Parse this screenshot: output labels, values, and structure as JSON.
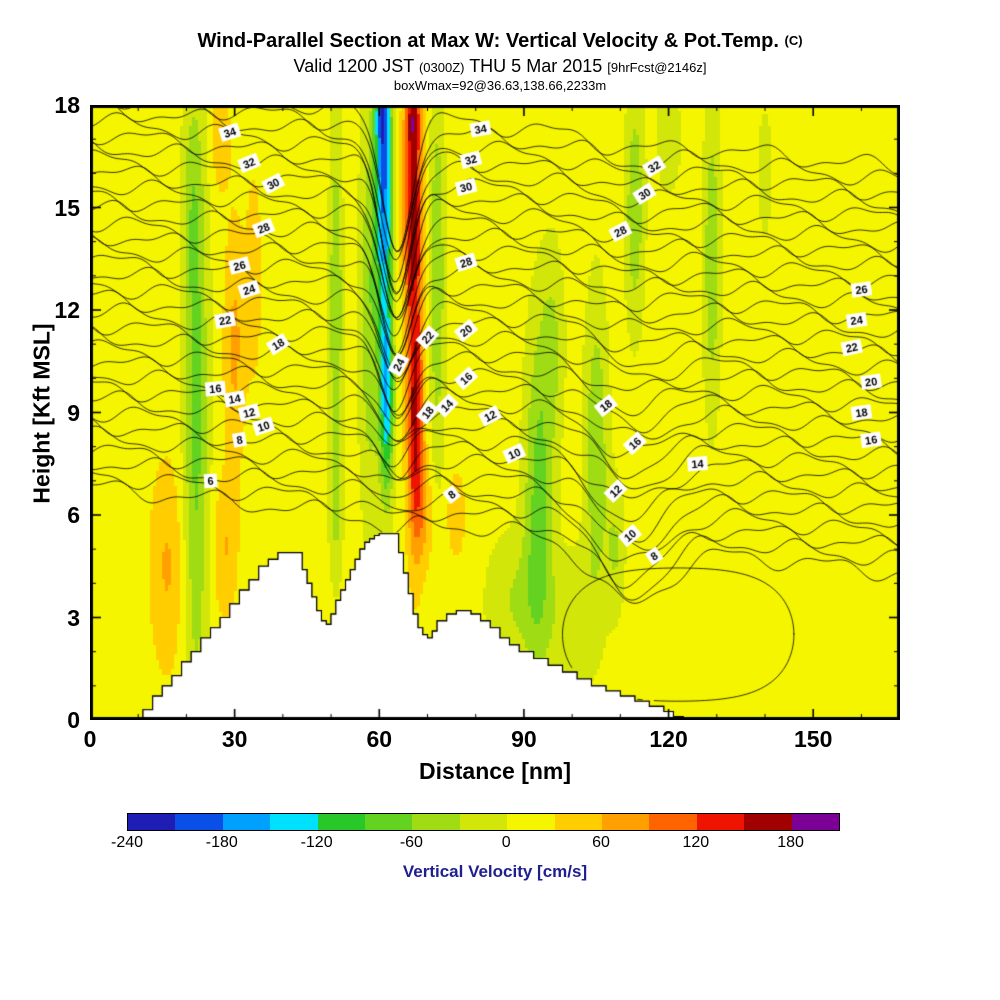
{
  "header": {
    "title": "Wind-Parallel Section at Max W: Vertical Velocity & Pot.Temp.",
    "title_suffix": "(C)",
    "valid_main1": "Valid 1200 JST",
    "valid_small1": "(0300Z)",
    "valid_main2": "THU 5 Mar 2015",
    "valid_small2": "[9hrFcst@2146z]",
    "box_info": "boxWmax=92@36.63,138.66,2233m"
  },
  "axes": {
    "xlabel": "Distance [nm]",
    "ylabel": "Height [Kft MSL]",
    "x_ticks": [
      0,
      30,
      60,
      90,
      120,
      150
    ],
    "x_minor_step": 10,
    "y_ticks": [
      0,
      3,
      6,
      9,
      12,
      15,
      18
    ],
    "y_minor_step": 1,
    "x_range": [
      0,
      168
    ],
    "y_range": [
      0,
      18
    ]
  },
  "colorbar": {
    "label": "Vertical Velocity [cm/s]",
    "label_color": "#1f1f8f",
    "vmin": -240,
    "vmax": 210,
    "step": 30,
    "ticks": [
      -240,
      -180,
      -120,
      -60,
      0,
      60,
      120,
      180
    ],
    "colors": [
      "#1e1eb4",
      "#0a50e6",
      "#00a0ff",
      "#00e1ff",
      "#28c828",
      "#64d220",
      "#a0dc14",
      "#d2e60a",
      "#f5f500",
      "#ffcd00",
      "#ffa000",
      "#ff6400",
      "#ef1400",
      "#a00000",
      "#7d0096"
    ]
  },
  "chart_data": {
    "type": "contour-cross-section",
    "title": "Wind-Parallel Section at Max W: Vertical Velocity & Pot.Temp. (C)",
    "xlabel": "Distance [nm]",
    "ylabel": "Height [Kft MSL]",
    "fill_quantity": "Vertical Velocity [cm/s]",
    "line_quantity": "Potential Temperature (C)",
    "background_value": 15,
    "velocity_blobs": [
      {
        "x": 22,
        "z": 9,
        "sx": 2.6,
        "sz": 9,
        "a": -85
      },
      {
        "x": 21,
        "z": 15,
        "sx": 2.0,
        "sz": 3,
        "a": -30
      },
      {
        "x": 16,
        "z": 4.5,
        "sx": 3.5,
        "sz": 3,
        "a": 48
      },
      {
        "x": 28,
        "z": 5,
        "sx": 2.5,
        "sz": 2,
        "a": 45
      },
      {
        "x": 30,
        "z": 11,
        "sx": 2.2,
        "sz": 3.5,
        "a": 52
      },
      {
        "x": 34,
        "z": 13,
        "sx": 1.6,
        "sz": 3,
        "a": 35
      },
      {
        "x": 27,
        "z": 17,
        "sx": 2,
        "sz": 1.5,
        "a": 40
      },
      {
        "x": 51,
        "z": 12,
        "sx": 1.4,
        "sz": 5.5,
        "a": -75
      },
      {
        "x": 51,
        "z": 6,
        "sx": 1.5,
        "sz": 2,
        "a": -35
      },
      {
        "x": 58,
        "z": 12,
        "sx": 2.2,
        "sz": 6,
        "a": -70
      },
      {
        "x": 61,
        "z": 15.5,
        "sx": 1.7,
        "sz": 3.5,
        "a": -190
      },
      {
        "x": 61.5,
        "z": 9.5,
        "sx": 1.5,
        "sz": 3,
        "a": -165
      },
      {
        "x": 60.5,
        "z": 17.8,
        "sx": 1.5,
        "sz": 1.2,
        "a": -110
      },
      {
        "x": 67,
        "z": 15,
        "sx": 1.9,
        "sz": 4,
        "a": 150
      },
      {
        "x": 67.5,
        "z": 8.5,
        "sx": 1.7,
        "sz": 3.5,
        "a": 140
      },
      {
        "x": 67,
        "z": 17.8,
        "sx": 1.5,
        "sz": 1.2,
        "a": 70
      },
      {
        "x": 69.5,
        "z": 6,
        "sx": 2,
        "sz": 1.5,
        "a": 40
      },
      {
        "x": 72,
        "z": 13,
        "sx": 1.6,
        "sz": 5.5,
        "a": -75
      },
      {
        "x": 76,
        "z": 6,
        "sx": 1.8,
        "sz": 1.2,
        "a": 42
      },
      {
        "x": 93,
        "z": 6.5,
        "sx": 3,
        "sz": 5,
        "a": -85
      },
      {
        "x": 96,
        "z": 11,
        "sx": 2.5,
        "sz": 3,
        "a": -45
      },
      {
        "x": 88,
        "z": 3.5,
        "sx": 6,
        "sz": 2,
        "a": -45
      },
      {
        "x": 100,
        "z": 3,
        "sx": 5,
        "sz": 2,
        "a": -40
      },
      {
        "x": 105,
        "z": 8,
        "sx": 2.5,
        "sz": 4.5,
        "a": -70
      },
      {
        "x": 109,
        "z": 5,
        "sx": 2,
        "sz": 2,
        "a": -45
      },
      {
        "x": 113,
        "z": 15,
        "sx": 2,
        "sz": 3.5,
        "a": -70
      },
      {
        "x": 120,
        "z": 17,
        "sx": 2.5,
        "sz": 1.5,
        "a": -45
      },
      {
        "x": 129,
        "z": 13.5,
        "sx": 1.8,
        "sz": 4.5,
        "a": -70
      },
      {
        "x": 140,
        "z": 16,
        "sx": 2,
        "sz": 2.5,
        "a": -25
      }
    ],
    "terrain_profile": [
      [
        9,
        0
      ],
      [
        11,
        0.3
      ],
      [
        13,
        0.7
      ],
      [
        15,
        1.0
      ],
      [
        17,
        1.3
      ],
      [
        19,
        1.7
      ],
      [
        21,
        2.0
      ],
      [
        23,
        2.4
      ],
      [
        25,
        2.7
      ],
      [
        27,
        3.0
      ],
      [
        29,
        3.4
      ],
      [
        31,
        3.8
      ],
      [
        33,
        4.1
      ],
      [
        35,
        4.5
      ],
      [
        37,
        4.7
      ],
      [
        39,
        4.9
      ],
      [
        43,
        4.9
      ],
      [
        44,
        4.4
      ],
      [
        45,
        4.0
      ],
      [
        46,
        3.6
      ],
      [
        47,
        3.2
      ],
      [
        48,
        2.9
      ],
      [
        49,
        2.8
      ],
      [
        50,
        3.1
      ],
      [
        51,
        3.5
      ],
      [
        52,
        3.8
      ],
      [
        53,
        4.1
      ],
      [
        54,
        4.4
      ],
      [
        55,
        4.7
      ],
      [
        56,
        5.0
      ],
      [
        57,
        5.2
      ],
      [
        58,
        5.3
      ],
      [
        59,
        5.4
      ],
      [
        60,
        5.45
      ],
      [
        63,
        5.45
      ],
      [
        64,
        4.9
      ],
      [
        65,
        4.3
      ],
      [
        66,
        3.7
      ],
      [
        67,
        3.1
      ],
      [
        68,
        2.7
      ],
      [
        69,
        2.5
      ],
      [
        70,
        2.4
      ],
      [
        71,
        2.6
      ],
      [
        72,
        2.9
      ],
      [
        74,
        3.1
      ],
      [
        76,
        3.2
      ],
      [
        79,
        3.1
      ],
      [
        81,
        2.9
      ],
      [
        83,
        2.7
      ],
      [
        85,
        2.4
      ],
      [
        87,
        2.2
      ],
      [
        89,
        2.0
      ],
      [
        92,
        1.8
      ],
      [
        95,
        1.6
      ],
      [
        98,
        1.4
      ],
      [
        101,
        1.2
      ],
      [
        104,
        1.0
      ],
      [
        107,
        0.85
      ],
      [
        110,
        0.7
      ],
      [
        113,
        0.55
      ],
      [
        116,
        0.4
      ],
      [
        119,
        0.25
      ],
      [
        121,
        0.1
      ],
      [
        123,
        0
      ]
    ],
    "isentropes": {
      "start": 4,
      "end": 36,
      "step": 1,
      "base": 5.55,
      "slope": 0.37,
      "tilt": -0.015,
      "tilt_x0": 85,
      "ripple1_amp": 0.22,
      "ripple1_wl": 3.4,
      "ripple1_ph": 1.7,
      "ripple2_amp": 0.1,
      "ripple2_wl": 1.6,
      "ripple2_ph": 0.9,
      "main_dip": {
        "x": 63.5,
        "sx": 4.3,
        "amp": 3.3,
        "vscale": 26,
        "vmin_frac": 0.12,
        "vmax_frac": 1.15
      },
      "secondary_dip": {
        "x": 112,
        "sx": 10,
        "amp": 1.8
      }
    },
    "closed_contour": {
      "cx": 122,
      "cz": 2.5,
      "rx": 24,
      "rz": 2.1
    },
    "contour_labels": [
      {
        "t": "34",
        "x": 29,
        "z": 17.2,
        "r": -18
      },
      {
        "t": "32",
        "x": 33,
        "z": 16.3,
        "r": -22
      },
      {
        "t": "30",
        "x": 38,
        "z": 15.7,
        "r": -28
      },
      {
        "t": "28",
        "x": 36,
        "z": 14.4,
        "r": -22
      },
      {
        "t": "26",
        "x": 31,
        "z": 13.3,
        "r": -14
      },
      {
        "t": "24",
        "x": 33,
        "z": 12.6,
        "r": -18
      },
      {
        "t": "22",
        "x": 28,
        "z": 11.7,
        "r": -10
      },
      {
        "t": "18",
        "x": 39,
        "z": 11.0,
        "r": -32
      },
      {
        "t": "16",
        "x": 26,
        "z": 9.7,
        "r": -5
      },
      {
        "t": "14",
        "x": 30,
        "z": 9.4,
        "r": -10
      },
      {
        "t": "12",
        "x": 33,
        "z": 9.0,
        "r": -14
      },
      {
        "t": "10",
        "x": 36,
        "z": 8.6,
        "r": -18
      },
      {
        "t": "8",
        "x": 31,
        "z": 8.2,
        "r": -10
      },
      {
        "t": "6",
        "x": 25,
        "z": 7.0,
        "r": -4
      },
      {
        "t": "24",
        "x": 64,
        "z": 10.4,
        "r": -62
      },
      {
        "t": "22",
        "x": 70,
        "z": 11.2,
        "r": -48
      },
      {
        "t": "20",
        "x": 78,
        "z": 11.4,
        "r": -38
      },
      {
        "t": "16",
        "x": 78,
        "z": 10.0,
        "r": -42
      },
      {
        "t": "14",
        "x": 74,
        "z": 9.2,
        "r": -46
      },
      {
        "t": "18",
        "x": 70,
        "z": 9.0,
        "r": -52
      },
      {
        "t": "12",
        "x": 83,
        "z": 8.9,
        "r": -28
      },
      {
        "t": "10",
        "x": 88,
        "z": 7.8,
        "r": -24
      },
      {
        "t": "8",
        "x": 75,
        "z": 6.6,
        "r": -38
      },
      {
        "t": "34",
        "x": 81,
        "z": 17.3,
        "r": -10
      },
      {
        "t": "32",
        "x": 79,
        "z": 16.4,
        "r": -14
      },
      {
        "t": "30",
        "x": 78,
        "z": 15.6,
        "r": -14
      },
      {
        "t": "28",
        "x": 78,
        "z": 13.4,
        "r": -18
      },
      {
        "t": "32",
        "x": 117,
        "z": 16.2,
        "r": -32
      },
      {
        "t": "30",
        "x": 115,
        "z": 15.4,
        "r": -32
      },
      {
        "t": "28",
        "x": 110,
        "z": 14.3,
        "r": -28
      },
      {
        "t": "18",
        "x": 107,
        "z": 9.2,
        "r": -38
      },
      {
        "t": "16",
        "x": 113,
        "z": 8.1,
        "r": -42
      },
      {
        "t": "12",
        "x": 109,
        "z": 6.7,
        "r": -44
      },
      {
        "t": "10",
        "x": 112,
        "z": 5.4,
        "r": -40
      },
      {
        "t": "8",
        "x": 117,
        "z": 4.8,
        "r": -34
      },
      {
        "t": "26",
        "x": 160,
        "z": 12.6,
        "r": -8
      },
      {
        "t": "24",
        "x": 159,
        "z": 11.7,
        "r": -8
      },
      {
        "t": "22",
        "x": 158,
        "z": 10.9,
        "r": -12
      },
      {
        "t": "20",
        "x": 162,
        "z": 9.9,
        "r": -8
      },
      {
        "t": "18",
        "x": 160,
        "z": 9.0,
        "r": -8
      },
      {
        "t": "16",
        "x": 162,
        "z": 8.2,
        "r": -8
      },
      {
        "t": "14",
        "x": 126,
        "z": 7.5,
        "r": -4
      }
    ]
  }
}
